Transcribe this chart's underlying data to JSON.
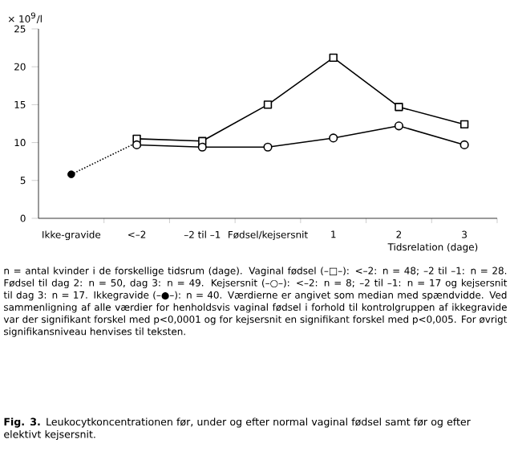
{
  "chart_data": {
    "type": "line",
    "ylabel": "× 10$^{9}$/l",
    "xlabel": "Tidsrelation (dage)",
    "categories": [
      "Ikke-gravide",
      "<–2",
      "–2 til –1",
      "Fødsel/kejsersnit",
      "1",
      "2",
      "3"
    ],
    "ylim": [
      0,
      25
    ],
    "yticks": [
      0,
      5,
      10,
      15,
      20,
      25
    ],
    "series": [
      {
        "color": "#000000",
        "marker": "square",
        "line_style": "solid",
        "values": [
          null,
          10.5,
          10.2,
          15,
          21.2,
          14.7,
          12.4
        ]
      },
      {
        "color": "#000000",
        "marker": "circle",
        "line_style": "solid",
        "values": [
          null,
          9.7,
          9.4,
          9.4,
          10.6,
          12.2,
          9.7
        ]
      },
      {
        "color": "#000000",
        "marker": "none",
        "line_style": "dotted",
        "values": [
          5.8,
          10.0,
          null,
          null,
          null,
          null,
          null
        ]
      },
      {
        "type": "scatter",
        "color": "#000000",
        "marker": "circle",
        "values": [
          5.8,
          null,
          null,
          null,
          null,
          null,
          null
        ]
      }
    ],
    "annotations": [
      "n = antal kvinder i de forskellige tidsrum (dage). Vaginal fødsel (–□–): <–2: n = 48; –2 til –1: n = 28. Fødsel til dag 2: n = 50, dag 3: n = 49. Kejsersnit (–○–): <–2: n = 8; –2 til –1: n = 17 og kejsersnit til dag 3: n = 17. Ikkegravide (–●–): n = 40. Værdierne er angivet som median med spændvidde. Ved sammenligning af alle værdier for henholdsvis vaginal fødsel i forhold til kontrolgruppen af ikkegravide var der signifikant forskel med p<0,0001 og for kejsersnit en signifikant forskel med p<0,005. For øvrigt signifikansniveau henvises til teksten.",
      "**Fig. 3.** Leukocytkoncentrationen før, under og efter normal vaginal fødsel samt før og efter elektivt kejsersnit."
    ]
  }
}
